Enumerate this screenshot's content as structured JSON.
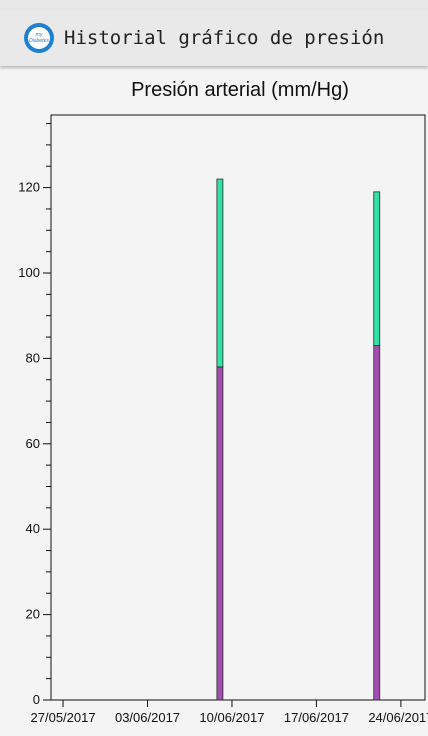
{
  "app": {
    "title": "Historial gráfico de presión",
    "logo_text": "my Diabetes"
  },
  "chart_data": {
    "type": "bar",
    "title": "Presión arterial (mm/Hg)",
    "stacked": true,
    "x_dates": [
      "27/05/2017",
      "03/06/2017",
      "10/06/2017",
      "17/06/2017",
      "24/06/2017"
    ],
    "x_range": [
      "26/05/2017",
      "26/06/2017"
    ],
    "ylim": [
      0,
      137
    ],
    "y_ticks": [
      0,
      20,
      40,
      60,
      80,
      100,
      120
    ],
    "bars": [
      {
        "date": "09/06/2017",
        "low": 78,
        "high": 122
      },
      {
        "date": "22/06/2017",
        "low": 83,
        "high": 119
      }
    ],
    "colors": {
      "low": "#a24fb0",
      "high": "#33e0a6"
    }
  }
}
